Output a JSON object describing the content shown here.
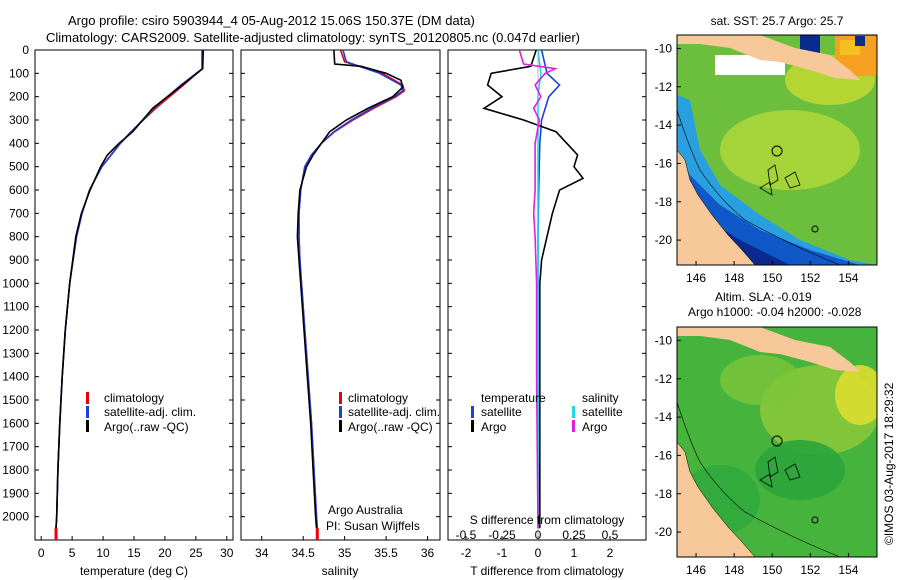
{
  "header": {
    "line1": "Argo profile: csiro 5903944_4 05-Aug-2012 15.06S 150.37E (DM data)",
    "line2": "Climatology: CARS2009. Satellite-adjusted climatology: synTS_20120805.nc (0.047d earlier)"
  },
  "colors": {
    "climatology": "#e8000b",
    "satellite": "#1f3fd8",
    "argo": "#000000",
    "sat_salinity": "#22d8e8",
    "argo_salinity": "#e020e0",
    "land": "#f6c89a",
    "ocean": "#5ab43c"
  },
  "chart_data": [
    {
      "type": "line",
      "xlabel": "temperature (deg C)",
      "ylabel": "",
      "xlim": [
        -1,
        31
      ],
      "ylim": [
        2100,
        0
      ],
      "xticks": [
        "0",
        "5",
        "10",
        "15",
        "20",
        "25",
        "30"
      ],
      "yticks": [
        "0",
        "100",
        "200",
        "300",
        "400",
        "500",
        "600",
        "700",
        "800",
        "900",
        "1000",
        "1100",
        "1200",
        "1300",
        "1400",
        "1500",
        "1600",
        "1700",
        "1800",
        "1900",
        "2000"
      ],
      "legend": [
        "climatology",
        "satellite-adj. clim.",
        "Argo(..raw -QC)"
      ],
      "series": [
        {
          "name": "climatology",
          "depth": [
            0,
            80,
            150,
            250,
            350,
            400,
            500,
            600,
            700,
            800,
            1000,
            1200,
            1400,
            1600,
            1800,
            2000,
            2050
          ],
          "values": [
            26.0,
            26.0,
            23.0,
            18.5,
            14.5,
            12.8,
            9.8,
            7.8,
            6.6,
            5.7,
            4.6,
            3.9,
            3.4,
            3.0,
            2.7,
            2.5,
            2.4
          ]
        },
        {
          "name": "satellite-adj. clim.",
          "depth": [
            0,
            80,
            150,
            250,
            350,
            400,
            500,
            600,
            700,
            800,
            1000,
            1200,
            1400,
            1600,
            1800,
            2000,
            2050
          ],
          "values": [
            26.0,
            26.0,
            22.6,
            18.2,
            14.6,
            12.8,
            9.8,
            7.8,
            6.6,
            5.7,
            4.6,
            3.9,
            3.4,
            3.0,
            2.7,
            2.5,
            2.4
          ]
        },
        {
          "name": "Argo(..raw -QC)",
          "depth": [
            0,
            80,
            150,
            250,
            350,
            400,
            450,
            500,
            600,
            700,
            800,
            1000,
            1200,
            1400,
            1600,
            1800,
            2000,
            2050
          ],
          "values": [
            26.2,
            26.1,
            22.8,
            18.0,
            14.8,
            12.6,
            10.7,
            9.6,
            7.9,
            6.5,
            5.6,
            4.6,
            3.9,
            3.4,
            3.0,
            2.7,
            2.5,
            2.4
          ]
        }
      ]
    },
    {
      "type": "line",
      "xlabel": "salinity",
      "ylabel": "",
      "xlim": [
        33.75,
        36.15
      ],
      "ylim": [
        2100,
        0
      ],
      "xticks": [
        "34",
        "34.5",
        "35",
        "35.5",
        "36"
      ],
      "legend": [
        "climatology",
        "satellite-adj. clim.",
        "Argo(..raw -QC)"
      ],
      "annotation": [
        "Argo Australia",
        "PI: Susan Wijffels"
      ],
      "series": [
        {
          "name": "climatology",
          "depth": [
            0,
            50,
            100,
            150,
            175,
            200,
            250,
            300,
            350,
            400,
            450,
            500,
            600,
            700,
            800,
            900,
            1000,
            1200,
            1400,
            1600,
            1800,
            2000,
            2050
          ],
          "values": [
            34.95,
            35.0,
            35.45,
            35.7,
            35.72,
            35.62,
            35.35,
            35.1,
            34.88,
            34.72,
            34.6,
            34.52,
            34.47,
            34.45,
            34.45,
            34.46,
            34.48,
            34.52,
            34.56,
            34.6,
            34.63,
            34.66,
            34.67
          ]
        },
        {
          "name": "satellite-adj. clim.",
          "depth": [
            0,
            50,
            100,
            150,
            175,
            200,
            250,
            300,
            350,
            400,
            450,
            500,
            600,
            700,
            800,
            900,
            1000,
            1200,
            1400,
            1600,
            1800,
            2000,
            2050
          ],
          "values": [
            34.98,
            35.02,
            35.42,
            35.68,
            35.7,
            35.6,
            35.32,
            35.08,
            34.87,
            34.72,
            34.6,
            34.52,
            34.47,
            34.45,
            34.45,
            34.46,
            34.48,
            34.52,
            34.56,
            34.6,
            34.63,
            34.66,
            34.67
          ]
        },
        {
          "name": "Argo(..raw -QC)",
          "depth": [
            0,
            60,
            70,
            100,
            130,
            160,
            200,
            250,
            300,
            350,
            400,
            450,
            500,
            550,
            600,
            700,
            800,
            900,
            1000,
            1200,
            1400,
            1600,
            1800,
            2000,
            2050
          ],
          "values": [
            34.87,
            34.88,
            35.2,
            35.5,
            35.68,
            35.7,
            35.58,
            35.28,
            35.02,
            34.82,
            34.72,
            34.62,
            34.54,
            34.5,
            34.46,
            34.44,
            34.43,
            34.45,
            34.47,
            34.51,
            34.55,
            34.59,
            34.62,
            34.65,
            34.66
          ]
        }
      ]
    },
    {
      "type": "line",
      "xlabel": "T difference from climatology",
      "xlabel_top": "S difference from climatology",
      "xlim": [
        -2.5,
        3.0
      ],
      "ylim": [
        2100,
        0
      ],
      "xticks": [
        "-2",
        "-1",
        "0",
        "1",
        "2"
      ],
      "xticks_top": [
        "-0.5",
        "-0.25",
        "0",
        "0.25",
        "0.5"
      ],
      "legend": [
        "temperature",
        "satellite",
        "Argo",
        "salinity",
        "satellite",
        "Argo"
      ],
      "series": [
        {
          "name": "temperature satellite",
          "depth": [
            0,
            100,
            150,
            200,
            300,
            400,
            600,
            800,
            1200,
            1600,
            2050
          ],
          "values": [
            0.1,
            0.25,
            0.6,
            0.3,
            0.1,
            0.05,
            0.02,
            0.0,
            0.0,
            0.0,
            0.0
          ]
        },
        {
          "name": "temperature Argo",
          "depth": [
            0,
            70,
            100,
            150,
            200,
            250,
            300,
            350,
            400,
            450,
            500,
            550,
            600,
            650,
            700,
            800,
            900,
            1000,
            1200,
            1400,
            1600,
            1800,
            2050
          ],
          "values": [
            -0.05,
            -0.2,
            -1.3,
            -1.4,
            -1.0,
            -1.5,
            -0.4,
            0.5,
            0.8,
            1.1,
            1.0,
            1.25,
            0.6,
            0.5,
            0.4,
            0.25,
            0.1,
            0.05,
            0.05,
            0.05,
            0.05,
            0.05,
            0.05
          ]
        },
        {
          "name": "salinity satellite",
          "depth": [
            0,
            100,
            200,
            400,
            800,
            1200,
            2050
          ],
          "values": [
            0.0,
            0.02,
            0.0,
            0.0,
            0.0,
            0.0,
            0.0
          ]
        },
        {
          "name": "salinity Argo",
          "depth": [
            0,
            60,
            80,
            100,
            150,
            200,
            250,
            300,
            400,
            500,
            600,
            700,
            800,
            1000,
            1400,
            2050
          ],
          "values": [
            -0.13,
            -0.1,
            0.12,
            0.05,
            -0.02,
            0.02,
            -0.03,
            0.01,
            -0.02,
            -0.02,
            -0.02,
            -0.03,
            -0.02,
            -0.01,
            -0.01,
            0.0
          ]
        }
      ]
    }
  ],
  "maps": [
    {
      "title": "sat. SST: 25.7 Argo: 25.7",
      "xticks": [
        "146",
        "148",
        "150",
        "152",
        "154"
      ],
      "yticks": [
        "-10",
        "-12",
        "-14",
        "-16",
        "-18",
        "-20"
      ]
    },
    {
      "title_line1": "Altim. SLA: -0.019",
      "title_line2": "Argo h1000: -0.04 h2000: -0.028",
      "xticks": [
        "146",
        "148",
        "150",
        "152",
        "154"
      ],
      "yticks": [
        "-10",
        "-12",
        "-14",
        "-16",
        "-18",
        "-20"
      ]
    }
  ],
  "credit": "©IMOS 03-Aug-2017 18:29:32"
}
